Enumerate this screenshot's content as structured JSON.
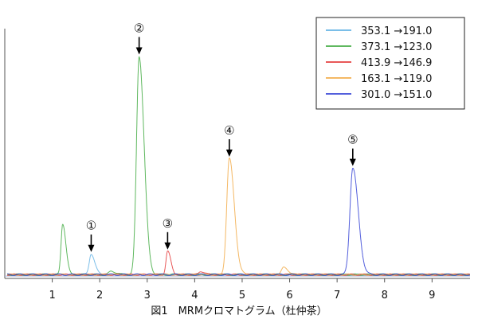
{
  "chart_data": {
    "type": "line",
    "caption": "図1　MRMクロマトグラム（杜仲茶）",
    "xlim": [
      0,
      9.8
    ],
    "ylim": [
      0,
      100
    ],
    "x_ticks": [
      "1",
      "2",
      "3",
      "4",
      "5",
      "6",
      "7",
      "8",
      "9"
    ],
    "x_tick_values": [
      1,
      2,
      3,
      4,
      5,
      6,
      7,
      8,
      9
    ],
    "legend_position": "top-right",
    "grid": false,
    "series": [
      {
        "name": "353.1 →191.0",
        "color": "#4fa8e0",
        "peaks": [
          {
            "rt": 1.82,
            "height": 9,
            "width": 0.04
          }
        ]
      },
      {
        "name": "373.1 →123.0",
        "color": "#2aa02a",
        "peaks": [
          {
            "rt": 1.22,
            "height": 22,
            "width": 0.035
          },
          {
            "rt": 2.83,
            "height": 94,
            "width": 0.055
          },
          {
            "rt": 2.25,
            "height": 1.5,
            "width": 0.05
          }
        ]
      },
      {
        "name": "413.9 →146.9",
        "color": "#e02020",
        "peaks": [
          {
            "rt": 3.43,
            "height": 10,
            "width": 0.035
          },
          {
            "rt": 4.13,
            "height": 1.5,
            "width": 0.04
          }
        ]
      },
      {
        "name": "163.1 →119.0",
        "color": "#f0a030",
        "peaks": [
          {
            "rt": 4.73,
            "height": 50,
            "width": 0.055
          },
          {
            "rt": 5.88,
            "height": 3,
            "width": 0.05
          }
        ]
      },
      {
        "name": "301.0 →151.0",
        "color": "#1a2ad0",
        "peaks": [
          {
            "rt": 7.33,
            "height": 46,
            "width": 0.06
          }
        ]
      }
    ],
    "markers": [
      {
        "label": "①",
        "x": 1.82,
        "y": 9
      },
      {
        "label": "②",
        "x": 2.83,
        "y": 94
      },
      {
        "label": "③",
        "x": 3.43,
        "y": 10
      },
      {
        "label": "④",
        "x": 4.73,
        "y": 50
      },
      {
        "label": "⑤",
        "x": 7.33,
        "y": 46
      }
    ]
  }
}
